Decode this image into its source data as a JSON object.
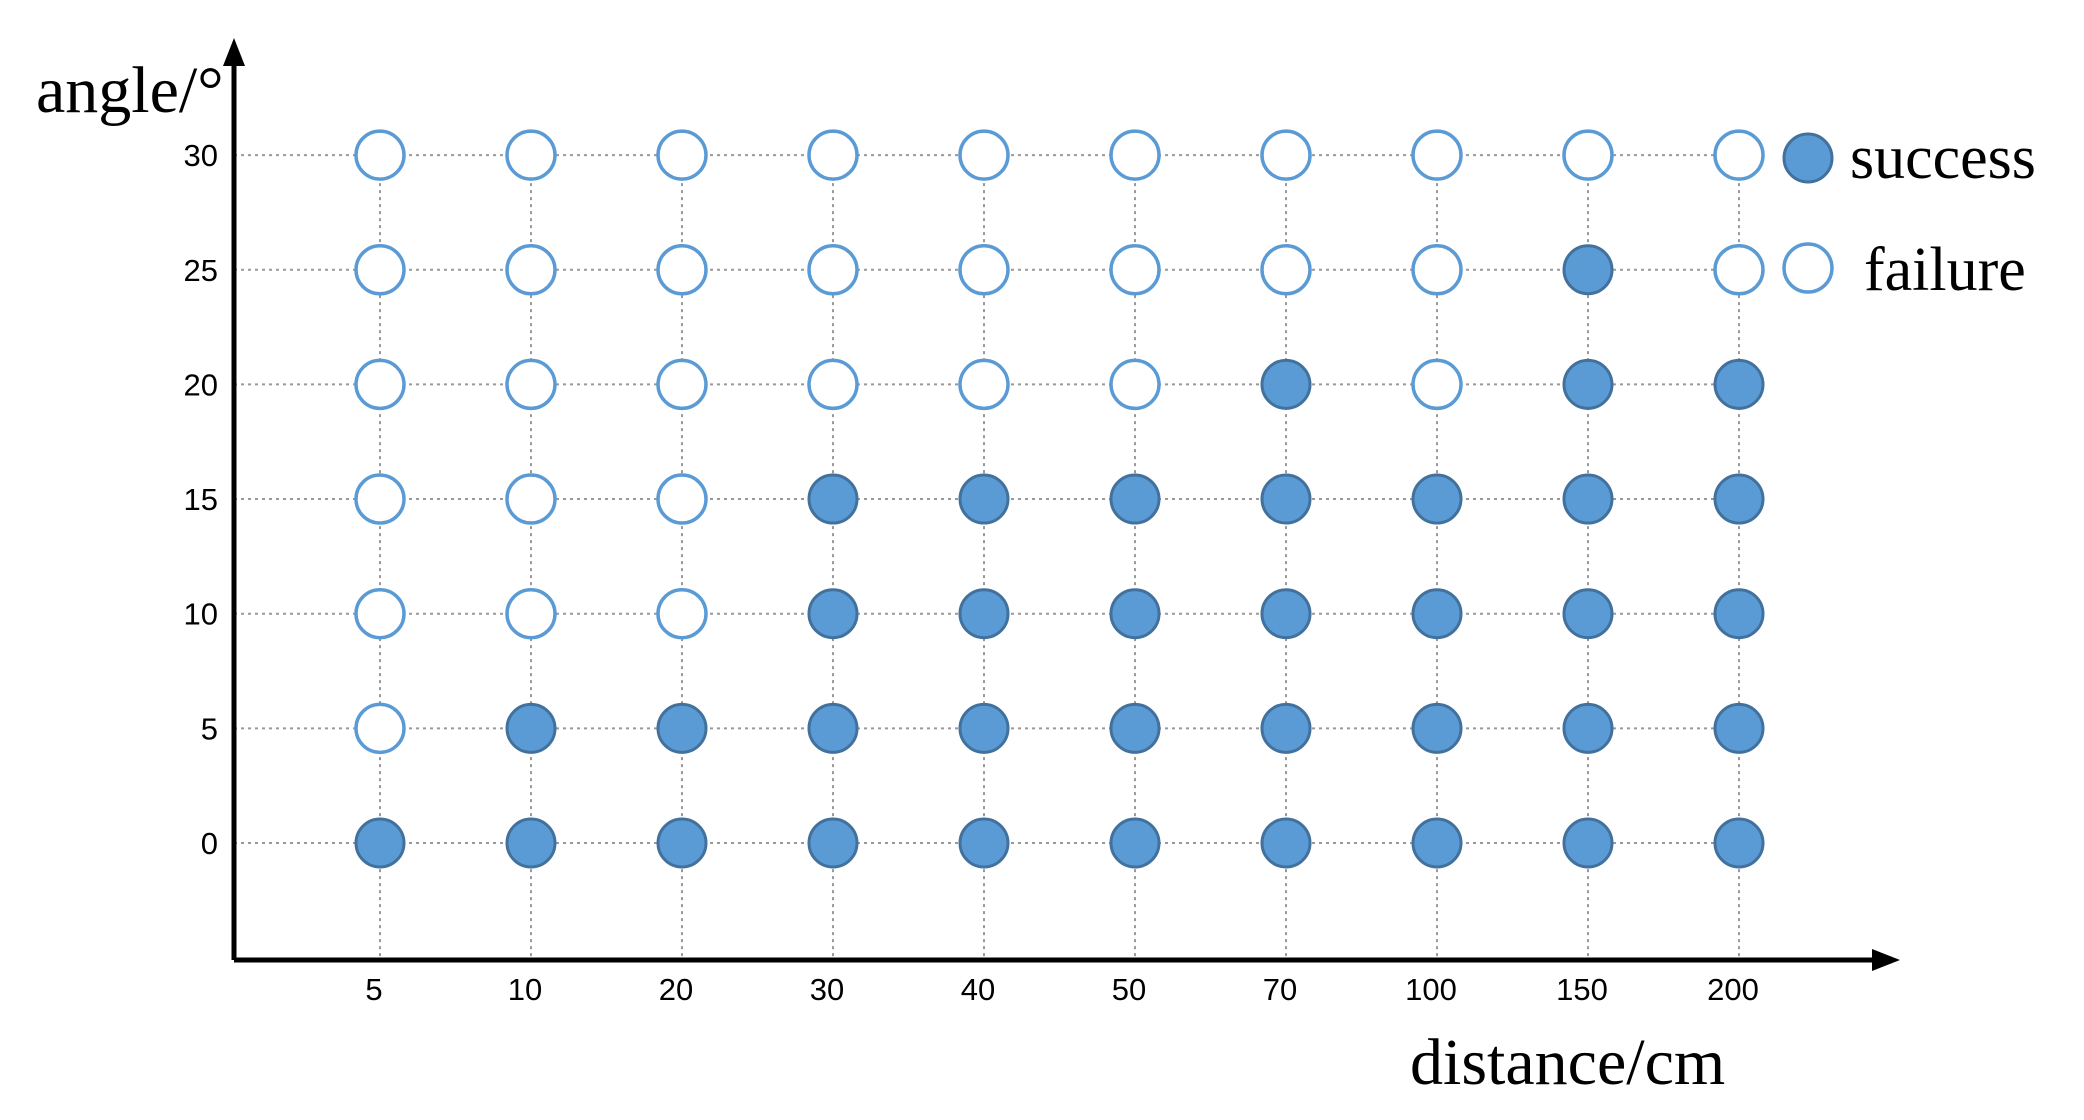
{
  "chart_data": {
    "type": "scatter",
    "xlabel": "distance/cm",
    "ylabel": "angle/°",
    "x_categories": [
      "5",
      "10",
      "20",
      "30",
      "40",
      "50",
      "70",
      "100",
      "150",
      "200"
    ],
    "y_ticks": [
      0,
      5,
      10,
      15,
      20,
      25,
      30
    ],
    "ylim": [
      -5,
      32
    ],
    "grid": "dotted",
    "legend": {
      "placement": "top-right",
      "items": [
        {
          "label": "success",
          "marker": "filled"
        },
        {
          "label": "failure",
          "marker": "hollow"
        }
      ]
    },
    "colors": {
      "success_fill": "#5b9bd5",
      "success_stroke": "#41719c",
      "failure_stroke": "#5b9bd5",
      "grid": "#999999",
      "axis": "#000000"
    },
    "series": [
      {
        "name": "success",
        "points": [
          {
            "x": "5",
            "y": 0
          },
          {
            "x": "10",
            "y": 0
          },
          {
            "x": "10",
            "y": 5
          },
          {
            "x": "20",
            "y": 0
          },
          {
            "x": "20",
            "y": 5
          },
          {
            "x": "30",
            "y": 0
          },
          {
            "x": "30",
            "y": 5
          },
          {
            "x": "30",
            "y": 10
          },
          {
            "x": "30",
            "y": 15
          },
          {
            "x": "40",
            "y": 0
          },
          {
            "x": "40",
            "y": 5
          },
          {
            "x": "40",
            "y": 10
          },
          {
            "x": "40",
            "y": 15
          },
          {
            "x": "50",
            "y": 0
          },
          {
            "x": "50",
            "y": 5
          },
          {
            "x": "50",
            "y": 10
          },
          {
            "x": "50",
            "y": 15
          },
          {
            "x": "70",
            "y": 0
          },
          {
            "x": "70",
            "y": 5
          },
          {
            "x": "70",
            "y": 10
          },
          {
            "x": "70",
            "y": 15
          },
          {
            "x": "70",
            "y": 20
          },
          {
            "x": "100",
            "y": 0
          },
          {
            "x": "100",
            "y": 5
          },
          {
            "x": "100",
            "y": 10
          },
          {
            "x": "100",
            "y": 15
          },
          {
            "x": "150",
            "y": 0
          },
          {
            "x": "150",
            "y": 5
          },
          {
            "x": "150",
            "y": 10
          },
          {
            "x": "150",
            "y": 15
          },
          {
            "x": "150",
            "y": 20
          },
          {
            "x": "150",
            "y": 25
          },
          {
            "x": "200",
            "y": 0
          },
          {
            "x": "200",
            "y": 5
          },
          {
            "x": "200",
            "y": 10
          },
          {
            "x": "200",
            "y": 15
          },
          {
            "x": "200",
            "y": 20
          }
        ]
      },
      {
        "name": "failure",
        "points": [
          {
            "x": "5",
            "y": 5
          },
          {
            "x": "5",
            "y": 10
          },
          {
            "x": "5",
            "y": 15
          },
          {
            "x": "5",
            "y": 20
          },
          {
            "x": "5",
            "y": 25
          },
          {
            "x": "5",
            "y": 30
          },
          {
            "x": "10",
            "y": 10
          },
          {
            "x": "10",
            "y": 15
          },
          {
            "x": "10",
            "y": 20
          },
          {
            "x": "10",
            "y": 25
          },
          {
            "x": "10",
            "y": 30
          },
          {
            "x": "20",
            "y": 10
          },
          {
            "x": "20",
            "y": 15
          },
          {
            "x": "20",
            "y": 20
          },
          {
            "x": "20",
            "y": 25
          },
          {
            "x": "20",
            "y": 30
          },
          {
            "x": "30",
            "y": 20
          },
          {
            "x": "30",
            "y": 25
          },
          {
            "x": "30",
            "y": 30
          },
          {
            "x": "40",
            "y": 20
          },
          {
            "x": "40",
            "y": 25
          },
          {
            "x": "40",
            "y": 30
          },
          {
            "x": "50",
            "y": 20
          },
          {
            "x": "50",
            "y": 25
          },
          {
            "x": "50",
            "y": 30
          },
          {
            "x": "70",
            "y": 25
          },
          {
            "x": "70",
            "y": 30
          },
          {
            "x": "100",
            "y": 20
          },
          {
            "x": "100",
            "y": 25
          },
          {
            "x": "100",
            "y": 30
          },
          {
            "x": "150",
            "y": 30
          },
          {
            "x": "200",
            "y": 25
          },
          {
            "x": "200",
            "y": 30
          }
        ]
      }
    ]
  }
}
